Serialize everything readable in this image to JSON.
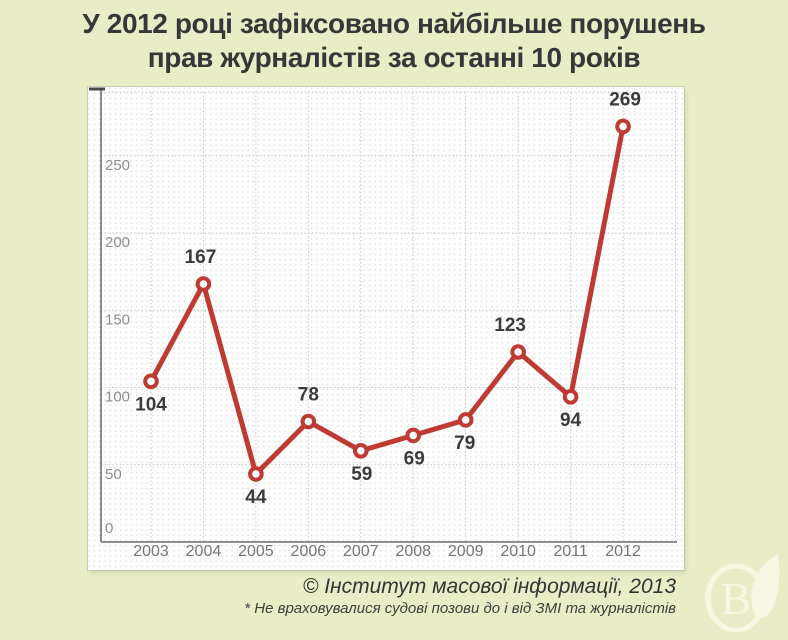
{
  "title": {
    "line1": "У 2012 році зафіксовано найбільше порушень",
    "line2": "прав журналістів за останні 10 років"
  },
  "chart_data": {
    "type": "line",
    "title": "У 2012 році зафіксовано найбільше порушень прав журналістів за останні 10 років",
    "categories": [
      "2003",
      "2004",
      "2005",
      "2006",
      "2007",
      "2008",
      "2009",
      "2010",
      "2011",
      "2012"
    ],
    "values": [
      104,
      167,
      44,
      78,
      59,
      69,
      79,
      123,
      94,
      269
    ],
    "label_positions": [
      "below",
      "above",
      "below",
      "above",
      "below",
      "below",
      "below",
      "above",
      "below",
      "above"
    ],
    "label_dx": [
      0,
      -3,
      0,
      0,
      1,
      1,
      -1,
      -8,
      0,
      2
    ],
    "xlabel": "",
    "ylabel": "",
    "ylim": [
      0,
      290
    ],
    "yticks": [
      0,
      50,
      100,
      150,
      200,
      250
    ],
    "grid": "dotted minor grid with dashed major gridlines",
    "legend": "none",
    "line_color": "#bf3a32",
    "marker": "open-circle"
  },
  "footer": {
    "credit": "© Інститут масової інформації, 2013",
    "note": "* Не враховувалися судові позови до і від ЗМІ та журналістів"
  },
  "logo": {
    "letter": "B"
  },
  "colors": {
    "background": "#e9edc7",
    "panel": "#fdfdfd",
    "line": "#bf3a32",
    "title_text": "#373737",
    "data_label": "#3b3b3b",
    "axis": "#7f7f7f",
    "major_grid": "#c8c8c8",
    "minor_grid_dot": "#dcdcdc",
    "ytick_text": "#8e8e8e",
    "xtick_text": "#757575",
    "watermark": "#fafbec"
  }
}
